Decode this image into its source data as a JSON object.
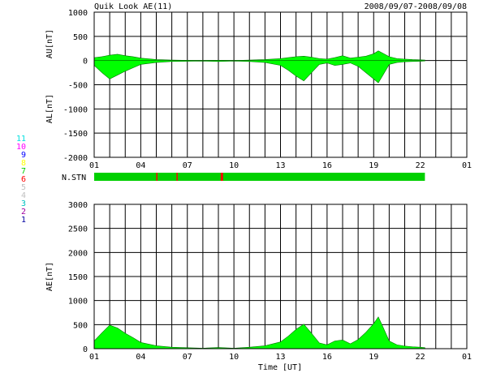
{
  "header": {
    "title": "Quik Look AE(11)",
    "date_range": "2008/09/07-2008/09/08"
  },
  "colors": {
    "fill": "#00ff00",
    "fill_dark": "#007700",
    "grid": "#000000",
    "missing": "#ff0000"
  },
  "station_legend": {
    "title": "N.STN",
    "items": [
      {
        "label": "11",
        "color": "#00e0e0"
      },
      {
        "label": "10",
        "color": "#ff00ff"
      },
      {
        "label": "9",
        "color": "#0000ff"
      },
      {
        "label": "8",
        "color": "#ffff00"
      },
      {
        "label": "7",
        "color": "#00d000"
      },
      {
        "label": "6",
        "color": "#ff0000"
      },
      {
        "label": "5",
        "color": "#c0c0c0"
      },
      {
        "label": "4",
        "color": "#c0c0c0"
      },
      {
        "label": "3",
        "color": "#00c0c0"
      },
      {
        "label": "2",
        "color": "#a000a0"
      },
      {
        "label": "1",
        "color": "#0000a0"
      }
    ]
  },
  "chart_data": [
    {
      "type": "area",
      "panel": "AU/AL",
      "ylabel_upper": "AU[nT]",
      "ylabel_lower": "AL[nT]",
      "xlabel": "",
      "ylim": [
        -2000,
        1000
      ],
      "yticks": [
        1000,
        500,
        0,
        -500,
        -1000,
        -1500,
        -2000
      ],
      "xticks": [
        "01",
        "04",
        "07",
        "10",
        "13",
        "16",
        "19",
        "22",
        "01"
      ],
      "xlim_hours": [
        0,
        24
      ],
      "data_end_hour": 21.3,
      "series": [
        {
          "values_label": "AU",
          "x": [
            0,
            0.5,
            1.0,
            1.5,
            2.0,
            2.5,
            3.0,
            4.0,
            5.0,
            6.0,
            7.0,
            8.0,
            9.0,
            10.0,
            11.0,
            12.0,
            12.5,
            13.0,
            13.5,
            14.0,
            14.5,
            15.0,
            15.5,
            16.0,
            16.5,
            17.0,
            17.5,
            18.0,
            18.3,
            18.6,
            19.0,
            19.5,
            20.0,
            20.5,
            21.0,
            21.3
          ],
          "values": [
            60,
            80,
            110,
            130,
            100,
            80,
            50,
            20,
            10,
            5,
            0,
            5,
            0,
            10,
            20,
            40,
            60,
            80,
            90,
            70,
            40,
            30,
            60,
            100,
            50,
            70,
            90,
            140,
            200,
            150,
            80,
            40,
            30,
            20,
            15,
            10
          ]
        },
        {
          "values_label": "AL",
          "x": [
            0,
            0.5,
            1.0,
            1.5,
            2.0,
            2.5,
            3.0,
            4.0,
            5.0,
            6.0,
            7.0,
            8.0,
            9.0,
            10.0,
            11.0,
            12.0,
            12.5,
            13.0,
            13.5,
            14.0,
            14.5,
            15.0,
            15.5,
            16.0,
            16.5,
            17.0,
            17.5,
            18.0,
            18.3,
            18.6,
            19.0,
            19.5,
            20.0,
            20.5,
            21.0,
            21.3
          ],
          "values": [
            -100,
            -250,
            -380,
            -300,
            -220,
            -150,
            -80,
            -40,
            -20,
            -15,
            -10,
            -20,
            -10,
            -20,
            -40,
            -100,
            -200,
            -320,
            -420,
            -250,
            -80,
            -50,
            -100,
            -80,
            -50,
            -120,
            -250,
            -380,
            -460,
            -300,
            -80,
            -40,
            -25,
            -20,
            -15,
            -10
          ]
        }
      ]
    },
    {
      "type": "area",
      "panel": "N.STN",
      "title": "N.STN",
      "values_label": "number_of_stations",
      "default_stations": 7,
      "missing_segments_hours": [
        [
          4.0,
          4.05
        ],
        [
          5.3,
          5.35
        ],
        [
          8.15,
          8.3
        ]
      ],
      "data_end_hour": 21.3
    },
    {
      "type": "area",
      "panel": "AE",
      "ylabel": "AE[nT]",
      "xlabel": "Time [UT]",
      "ylim": [
        0,
        3000
      ],
      "yticks": [
        3000,
        2500,
        2000,
        1500,
        1000,
        500,
        0
      ],
      "xticks": [
        "01",
        "04",
        "07",
        "10",
        "13",
        "16",
        "19",
        "22",
        "01"
      ],
      "xlim_hours": [
        0,
        24
      ],
      "data_end_hour": 21.3,
      "series": [
        {
          "values_label": "AE",
          "x": [
            0,
            0.5,
            1.0,
            1.5,
            2.0,
            2.5,
            3.0,
            4.0,
            5.0,
            6.0,
            7.0,
            8.0,
            9.0,
            10.0,
            11.0,
            12.0,
            12.5,
            13.0,
            13.5,
            14.0,
            14.5,
            15.0,
            15.5,
            16.0,
            16.5,
            17.0,
            17.5,
            18.0,
            18.3,
            18.6,
            19.0,
            19.5,
            20.0,
            20.5,
            21.0,
            21.3
          ],
          "values": [
            160,
            330,
            490,
            430,
            320,
            230,
            130,
            60,
            30,
            20,
            10,
            25,
            10,
            30,
            60,
            140,
            260,
            400,
            510,
            320,
            120,
            80,
            160,
            180,
            100,
            190,
            340,
            520,
            660,
            450,
            160,
            80,
            55,
            40,
            30,
            20
          ]
        }
      ]
    }
  ]
}
